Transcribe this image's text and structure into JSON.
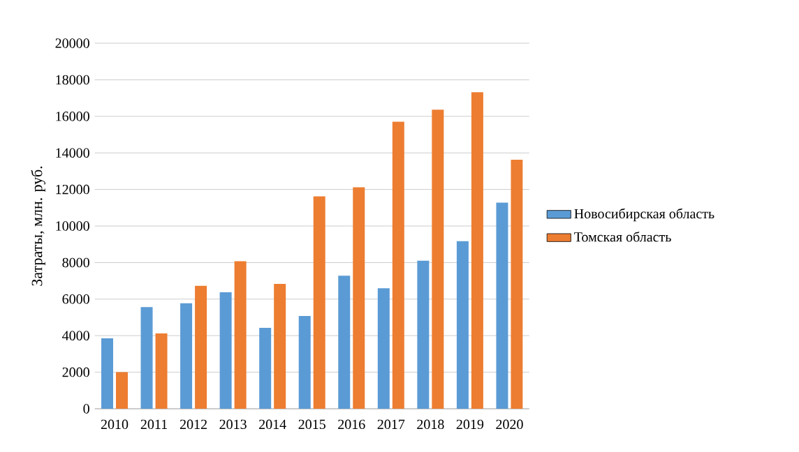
{
  "chart_data": {
    "type": "bar",
    "ylabel": "Затраты, млн. руб.",
    "categories": [
      "2010",
      "2011",
      "2012",
      "2013",
      "2014",
      "2015",
      "2016",
      "2017",
      "2018",
      "2019",
      "2020"
    ],
    "series": [
      {
        "name": "Новосибирская область",
        "color": "#5b9bd5",
        "values": [
          3850,
          5560,
          5770,
          6370,
          4430,
          5080,
          7280,
          6590,
          8100,
          9170,
          11280
        ]
      },
      {
        "name": "Томская область",
        "color": "#ed7d31",
        "values": [
          2000,
          4120,
          6730,
          8070,
          6830,
          11620,
          12120,
          15710,
          16360,
          17320,
          13630
        ]
      }
    ],
    "ylim": [
      0,
      20000
    ],
    "yticks": [
      0,
      2000,
      4000,
      6000,
      8000,
      10000,
      12000,
      14000,
      16000,
      18000,
      20000
    ],
    "grid": "y",
    "legend": "right"
  }
}
